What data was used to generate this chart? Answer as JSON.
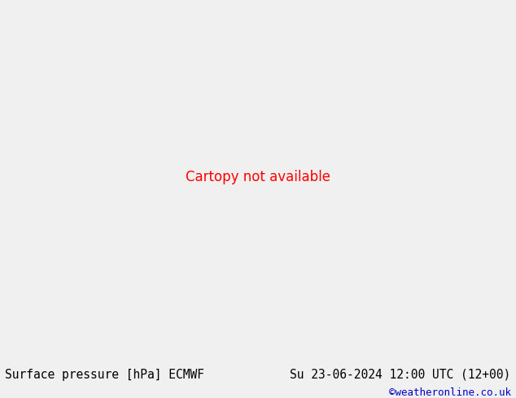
{
  "title_left": "Surface pressure [hPa] ECMWF",
  "title_right": "Su 23-06-2024 12:00 UTC (12+00)",
  "credit": "©weatheronline.co.uk",
  "bg_color": "#e0e0e0",
  "land_color": "#c8e6a0",
  "mountain_color": "#a8a8a8",
  "sea_color": "#dcdcdc",
  "blue_color": "#0000ff",
  "red_color": "#ff0000",
  "black_color": "#000000",
  "bottom_bar_color": "#f0f0f0",
  "bottom_text_color": "#000000",
  "credit_color": "#0000cc",
  "lon_min": -45,
  "lon_max": 45,
  "lat_min": 28,
  "lat_max": 72,
  "fig_width": 6.34,
  "fig_height": 4.9,
  "dpi": 100
}
